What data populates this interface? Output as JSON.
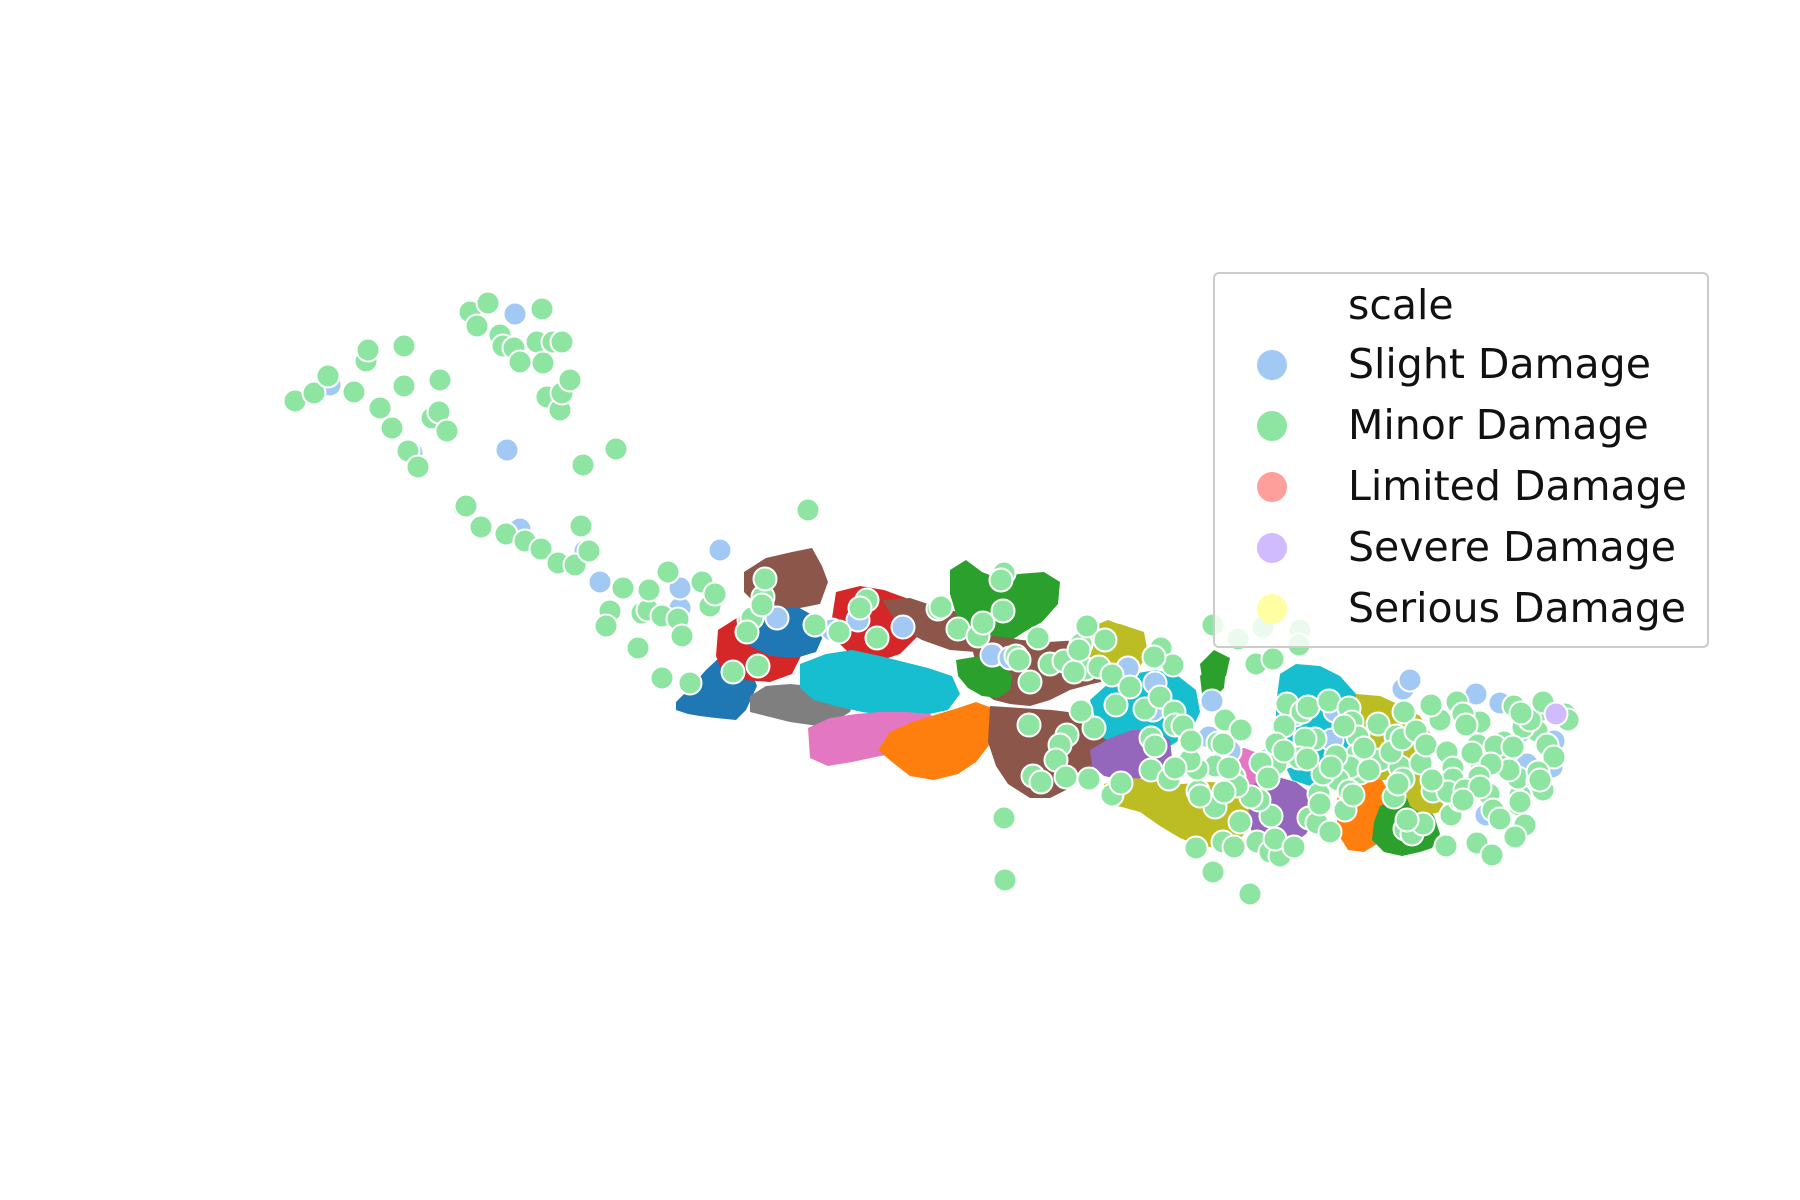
{
  "chart_data": {
    "type": "scatter",
    "title": "",
    "xlabel": "",
    "ylabel": "",
    "axes_visible": false,
    "legend": {
      "title": "scale",
      "placement": "right",
      "entries": [
        {
          "label": "Slight Damage",
          "color": "#a1c9f4"
        },
        {
          "label": "Minor Damage",
          "color": "#8de5a1"
        },
        {
          "label": "Limited Damage",
          "color": "#ff9f9b"
        },
        {
          "label": "Severe Damage",
          "color": "#d0bbff"
        },
        {
          "label": "Serious Damage",
          "color": "#fffea3"
        }
      ]
    },
    "marker_edge_color": "#ffffff",
    "region_colors": [
      "#1f77b4",
      "#ff7f0e",
      "#2ca02c",
      "#d62728",
      "#9467bd",
      "#8c564b",
      "#e377c2",
      "#7f7f7f",
      "#bcbd22",
      "#17becf"
    ],
    "series": [
      {
        "name": "Slight Damage",
        "color": "#a1c9f4",
        "points": [
          [
            330,
            385
          ],
          [
            515,
            314
          ],
          [
            412,
            453
          ],
          [
            507,
            450
          ],
          [
            520,
            529
          ],
          [
            585,
            551
          ],
          [
            600,
            582
          ],
          [
            680,
            608
          ],
          [
            720,
            550
          ],
          [
            680,
            588
          ],
          [
            777,
            618
          ],
          [
            832,
            630
          ],
          [
            858,
            620
          ],
          [
            903,
            627
          ],
          [
            993,
            655
          ],
          [
            992,
            655
          ],
          [
            1010,
            658
          ],
          [
            1128,
            668
          ],
          [
            1155,
            683
          ],
          [
            1212,
            701
          ],
          [
            1230,
            751
          ],
          [
            1286,
            756
          ],
          [
            1332,
            740
          ],
          [
            1335,
            711
          ],
          [
            1295,
            715
          ],
          [
            1403,
            689
          ],
          [
            1410,
            680
          ],
          [
            1476,
            694
          ],
          [
            1479,
            754
          ],
          [
            1500,
            703
          ],
          [
            1522,
            731
          ],
          [
            1527,
            764
          ],
          [
            1552,
            767
          ],
          [
            1554,
            741
          ],
          [
            1486,
            815
          ],
          [
            1153,
            710
          ],
          [
            1266,
            760
          ],
          [
            1209,
            737
          ]
        ]
      },
      {
        "name": "Minor Damage",
        "color": "#8de5a1",
        "points": [
          [
            295,
            401
          ],
          [
            314,
            393
          ],
          [
            328,
            376
          ],
          [
            354,
            392
          ],
          [
            366,
            361
          ],
          [
            368,
            350
          ],
          [
            404,
            346
          ],
          [
            404,
            386
          ],
          [
            380,
            408
          ],
          [
            392,
            428
          ],
          [
            408,
            451
          ],
          [
            418,
            467
          ],
          [
            432,
            418
          ],
          [
            440,
            380
          ],
          [
            439,
            412
          ],
          [
            447,
            431
          ],
          [
            470,
            312
          ],
          [
            488,
            303
          ],
          [
            477,
            326
          ],
          [
            500,
            335
          ],
          [
            503,
            346
          ],
          [
            514,
            348
          ],
          [
            520,
            362
          ],
          [
            537,
            342
          ],
          [
            542,
            309
          ],
          [
            543,
            363
          ],
          [
            553,
            342
          ],
          [
            562,
            342
          ],
          [
            547,
            397
          ],
          [
            560,
            410
          ],
          [
            562,
            393
          ],
          [
            570,
            380
          ],
          [
            583,
            465
          ],
          [
            616,
            449
          ],
          [
            464,
            507
          ],
          [
            466,
            506
          ],
          [
            481,
            527
          ],
          [
            506,
            534
          ],
          [
            525,
            541
          ],
          [
            541,
            549
          ],
          [
            558,
            563
          ],
          [
            575,
            565
          ],
          [
            589,
            551
          ],
          [
            581,
            526
          ],
          [
            610,
            611
          ],
          [
            606,
            626
          ],
          [
            623,
            588
          ],
          [
            642,
            613
          ],
          [
            648,
            610
          ],
          [
            649,
            590
          ],
          [
            668,
            572
          ],
          [
            662,
            616
          ],
          [
            678,
            619
          ],
          [
            702,
            582
          ],
          [
            710,
            606
          ],
          [
            715,
            594
          ],
          [
            749,
            620
          ],
          [
            752,
            618
          ],
          [
            763,
            597
          ],
          [
            762,
            605
          ],
          [
            765,
            579
          ],
          [
            747,
            632
          ],
          [
            758,
            666
          ],
          [
            733,
            672
          ],
          [
            682,
            636
          ],
          [
            638,
            648
          ],
          [
            662,
            678
          ],
          [
            690,
            683
          ],
          [
            808,
            510
          ],
          [
            815,
            625
          ],
          [
            839,
            632
          ],
          [
            867,
            600
          ],
          [
            860,
            608
          ],
          [
            877,
            638
          ],
          [
            938,
            609
          ],
          [
            941,
            607
          ],
          [
            958,
            629
          ],
          [
            978,
            636
          ],
          [
            983,
            623
          ],
          [
            1003,
            611
          ],
          [
            1016,
            656
          ],
          [
            1038,
            638
          ],
          [
            1050,
            664
          ],
          [
            1081,
            644
          ],
          [
            1086,
            669
          ],
          [
            1004,
            573
          ],
          [
            1001,
            580
          ],
          [
            1019,
            660
          ],
          [
            1030,
            682
          ],
          [
            1064,
            661
          ],
          [
            1074,
            672
          ],
          [
            1079,
            650
          ],
          [
            1099,
            667
          ],
          [
            1112,
            675
          ],
          [
            1116,
            705
          ],
          [
            1130,
            687
          ],
          [
            1145,
            709
          ],
          [
            1160,
            697
          ],
          [
            1174,
            712
          ],
          [
            1190,
            742
          ],
          [
            1215,
            766
          ],
          [
            1225,
            720
          ],
          [
            1218,
            743
          ],
          [
            1198,
            791
          ],
          [
            1215,
            807
          ],
          [
            1234,
            777
          ],
          [
            1223,
            842
          ],
          [
            1196,
            848
          ],
          [
            1240,
            822
          ],
          [
            1234,
            847
          ],
          [
            1213,
            872
          ],
          [
            1257,
            842
          ],
          [
            1270,
            852
          ],
          [
            1250,
            894
          ],
          [
            1280,
            856
          ],
          [
            1275,
            839
          ],
          [
            1271,
            816
          ],
          [
            1259,
            800
          ],
          [
            1294,
            847
          ],
          [
            1309,
            818
          ],
          [
            1317,
            823
          ],
          [
            1319,
            794
          ],
          [
            1330,
            832
          ],
          [
            1345,
            810
          ],
          [
            1346,
            788
          ],
          [
            1363,
            761
          ],
          [
            1360,
            773
          ],
          [
            1380,
            760
          ],
          [
            1400,
            767
          ],
          [
            1403,
            779
          ],
          [
            1394,
            797
          ],
          [
            1405,
            829
          ],
          [
            1412,
            834
          ],
          [
            1423,
            824
          ],
          [
            1451,
            815
          ],
          [
            1448,
            787
          ],
          [
            1481,
            763
          ],
          [
            1478,
            745
          ],
          [
            1504,
            742
          ],
          [
            1537,
            731
          ],
          [
            1542,
            710
          ],
          [
            1565,
            714
          ],
          [
            1568,
            720
          ],
          [
            1547,
            745
          ],
          [
            1554,
            757
          ],
          [
            1520,
            795
          ],
          [
            1518,
            778
          ],
          [
            1500,
            761
          ],
          [
            1505,
            765
          ],
          [
            1538,
            781
          ],
          [
            1477,
            843
          ],
          [
            1446,
            846
          ],
          [
            1407,
            820
          ],
          [
            1480,
            722
          ],
          [
            1398,
            784
          ],
          [
            1004,
            818
          ],
          [
            1005,
            880
          ],
          [
            1087,
            626
          ],
          [
            1105,
            640
          ],
          [
            1161,
            648
          ],
          [
            1173,
            665
          ],
          [
            1154,
            657
          ],
          [
            1213,
            625
          ],
          [
            1238,
            639
          ],
          [
            1256,
            664
          ],
          [
            1300,
            630
          ],
          [
            1299,
            645
          ],
          [
            1263,
            627
          ],
          [
            1273,
            659
          ],
          [
            1287,
            704
          ],
          [
            1302,
            712
          ],
          [
            1308,
            707
          ],
          [
            1284,
            726
          ],
          [
            1329,
            701
          ],
          [
            1349,
            708
          ],
          [
            1352,
            722
          ],
          [
            1358,
            737
          ],
          [
            1357,
            755
          ],
          [
            1350,
            767
          ],
          [
            1338,
            780
          ],
          [
            1349,
            791
          ],
          [
            1323,
            774
          ],
          [
            1336,
            756
          ],
          [
            1315,
            739
          ],
          [
            1305,
            739
          ],
          [
            1299,
            758
          ],
          [
            1276,
            764
          ],
          [
            1251,
            797
          ],
          [
            1237,
            786
          ],
          [
            1200,
            796
          ],
          [
            1224,
            792
          ],
          [
            1197,
            769
          ],
          [
            1190,
            760
          ],
          [
            1175,
            725
          ],
          [
            1183,
            726
          ],
          [
            1151,
            738
          ],
          [
            1155,
            746
          ],
          [
            1094,
            728
          ],
          [
            1081,
            711
          ],
          [
            1067,
            735
          ],
          [
            1060,
            745
          ],
          [
            1029,
            725
          ],
          [
            1056,
            760
          ],
          [
            1033,
            776
          ],
          [
            1041,
            782
          ],
          [
            1066,
            777
          ],
          [
            1089,
            779
          ],
          [
            1112,
            795
          ],
          [
            1121,
            783
          ],
          [
            1151,
            770
          ],
          [
            1169,
            779
          ],
          [
            1175,
            768
          ],
          [
            1191,
            741
          ],
          [
            1223,
            744
          ],
          [
            1241,
            730
          ],
          [
            1261,
            763
          ],
          [
            1276,
            744
          ],
          [
            1284,
            751
          ],
          [
            1307,
            759
          ],
          [
            1331,
            767
          ],
          [
            1344,
            726
          ],
          [
            1378,
            724
          ],
          [
            1404,
            712
          ],
          [
            1396,
            736
          ],
          [
            1391,
            752
          ],
          [
            1369,
            770
          ],
          [
            1364,
            748
          ],
          [
            1402,
            739
          ],
          [
            1421,
            763
          ],
          [
            1457,
            702
          ],
          [
            1463,
            714
          ],
          [
            1440,
            720
          ],
          [
            1431,
            705
          ],
          [
            1416,
            731
          ],
          [
            1426,
            745
          ],
          [
            1447,
            752
          ],
          [
            1453,
            768
          ],
          [
            1466,
            725
          ],
          [
            1495,
            746
          ],
          [
            1472,
            753
          ],
          [
            1514,
            706
          ],
          [
            1523,
            727
          ],
          [
            1530,
            720
          ],
          [
            1513,
            747
          ],
          [
            1509,
            770
          ],
          [
            1433,
            791
          ],
          [
            1460,
            800
          ],
          [
            1491,
            764
          ],
          [
            1521,
            713
          ],
          [
            1543,
            702
          ],
          [
            1453,
            779
          ],
          [
            1448,
            792
          ],
          [
            1432,
            780
          ],
          [
            1479,
            777
          ],
          [
            1465,
            790
          ],
          [
            1489,
            794
          ],
          [
            1480,
            787
          ],
          [
            1463,
            800
          ],
          [
            1493,
            810
          ],
          [
            1519,
            805
          ],
          [
            1500,
            819
          ],
          [
            1525,
            825
          ],
          [
            1538,
            772
          ],
          [
            1520,
            802
          ],
          [
            1543,
            790
          ],
          [
            1515,
            837
          ],
          [
            1492,
            855
          ],
          [
            1540,
            780
          ],
          [
            1353,
            795
          ],
          [
            1320,
            804
          ],
          [
            1268,
            778
          ],
          [
            1229,
            768
          ]
        ]
      },
      {
        "name": "Limited Damage",
        "color": "#ff9f9b",
        "points": []
      },
      {
        "name": "Severe Damage",
        "color": "#d0bbff",
        "points": [
          [
            1556,
            714
          ]
        ]
      },
      {
        "name": "Serious Damage",
        "color": "#fffea3",
        "points": []
      }
    ]
  }
}
